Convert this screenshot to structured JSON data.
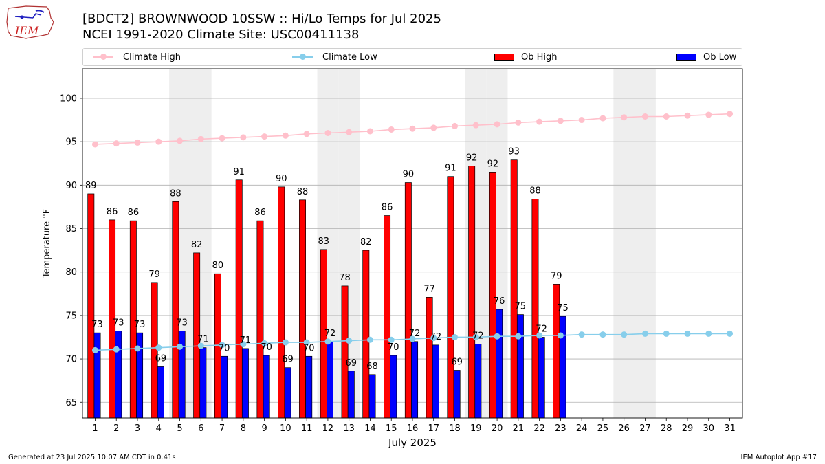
{
  "header": {
    "title_line1": "[BDCT2] BROWNWOOD 10SSW :: Hi/Lo Temps for Jul 2025",
    "title_line2": "NCEI 1991-2020 Climate Site: USC00411138",
    "logo_text": "IEM"
  },
  "legend": {
    "climate_high": "Climate High",
    "climate_low": "Climate Low",
    "ob_high": "Ob High",
    "ob_low": "Ob Low"
  },
  "footer": {
    "generated": "Generated at 23 Jul 2025 10:07 AM CDT in 0.41s",
    "app": "IEM Autoplot App #17"
  },
  "colors": {
    "ob_high": "#ff0000",
    "ob_low": "#0000ff",
    "climate_high": "#ffc0cb",
    "climate_low": "#87ceeb",
    "weekend_shade": "#eeeeee",
    "grid": "#b0b0b0"
  },
  "chart_data": {
    "type": "bar",
    "xlabel": "July 2025",
    "ylabel": "Temperature °F",
    "ylim": [
      63.2,
      103.4
    ],
    "yticks": [
      65,
      70,
      75,
      80,
      85,
      90,
      95,
      100
    ],
    "grid": "horizontal",
    "legend_position": "top",
    "categories": [
      1,
      2,
      3,
      4,
      5,
      6,
      7,
      8,
      9,
      10,
      11,
      12,
      13,
      14,
      15,
      16,
      17,
      18,
      19,
      20,
      21,
      22,
      23,
      24,
      25,
      26,
      27,
      28,
      29,
      30,
      31
    ],
    "weekend_days": [
      5,
      6,
      12,
      13,
      19,
      20,
      26,
      27
    ],
    "series": [
      {
        "name": "Ob High",
        "kind": "bar",
        "values": [
          89,
          86,
          86,
          79,
          88,
          82,
          80,
          91,
          86,
          90,
          88,
          83,
          78,
          82,
          86,
          90,
          77,
          91,
          92,
          92,
          93,
          88,
          79,
          null,
          null,
          null,
          null,
          null,
          null,
          null,
          null
        ],
        "plotted": [
          89.0,
          86.0,
          85.9,
          78.8,
          88.1,
          82.2,
          79.8,
          90.6,
          85.9,
          89.8,
          88.3,
          82.6,
          78.4,
          82.5,
          86.5,
          90.3,
          77.1,
          91.0,
          92.2,
          91.5,
          92.9,
          88.4,
          78.6,
          null,
          null,
          null,
          null,
          null,
          null,
          null,
          null
        ]
      },
      {
        "name": "Ob Low",
        "kind": "bar",
        "values": [
          73,
          73,
          73,
          69,
          73,
          71,
          70,
          71,
          70,
          69,
          70,
          72,
          69,
          68,
          70,
          72,
          72,
          69,
          72,
          76,
          75,
          72,
          75,
          null,
          null,
          null,
          null,
          null,
          null,
          null,
          null
        ],
        "plotted": [
          73.0,
          73.2,
          73.0,
          69.1,
          73.2,
          71.3,
          70.3,
          71.2,
          70.4,
          69.0,
          70.3,
          72.0,
          68.6,
          68.2,
          70.4,
          72.0,
          71.6,
          68.7,
          71.7,
          75.7,
          75.1,
          72.5,
          74.9,
          null,
          null,
          null,
          null,
          null,
          null,
          null,
          null
        ]
      },
      {
        "name": "Climate High",
        "kind": "line",
        "values": [
          94.7,
          94.8,
          94.9,
          95.0,
          95.1,
          95.3,
          95.4,
          95.5,
          95.6,
          95.7,
          95.9,
          96.0,
          96.1,
          96.2,
          96.4,
          96.5,
          96.6,
          96.8,
          96.9,
          97.0,
          97.2,
          97.3,
          97.4,
          97.5,
          97.7,
          97.8,
          97.9,
          97.9,
          98.0,
          98.1,
          98.2
        ]
      },
      {
        "name": "Climate Low",
        "kind": "line",
        "values": [
          71.0,
          71.1,
          71.2,
          71.3,
          71.4,
          71.5,
          71.6,
          71.7,
          71.8,
          71.9,
          71.9,
          72.0,
          72.1,
          72.2,
          72.2,
          72.3,
          72.4,
          72.5,
          72.5,
          72.6,
          72.6,
          72.7,
          72.7,
          72.8,
          72.8,
          72.8,
          72.9,
          72.9,
          72.9,
          72.9,
          72.9
        ]
      }
    ]
  }
}
